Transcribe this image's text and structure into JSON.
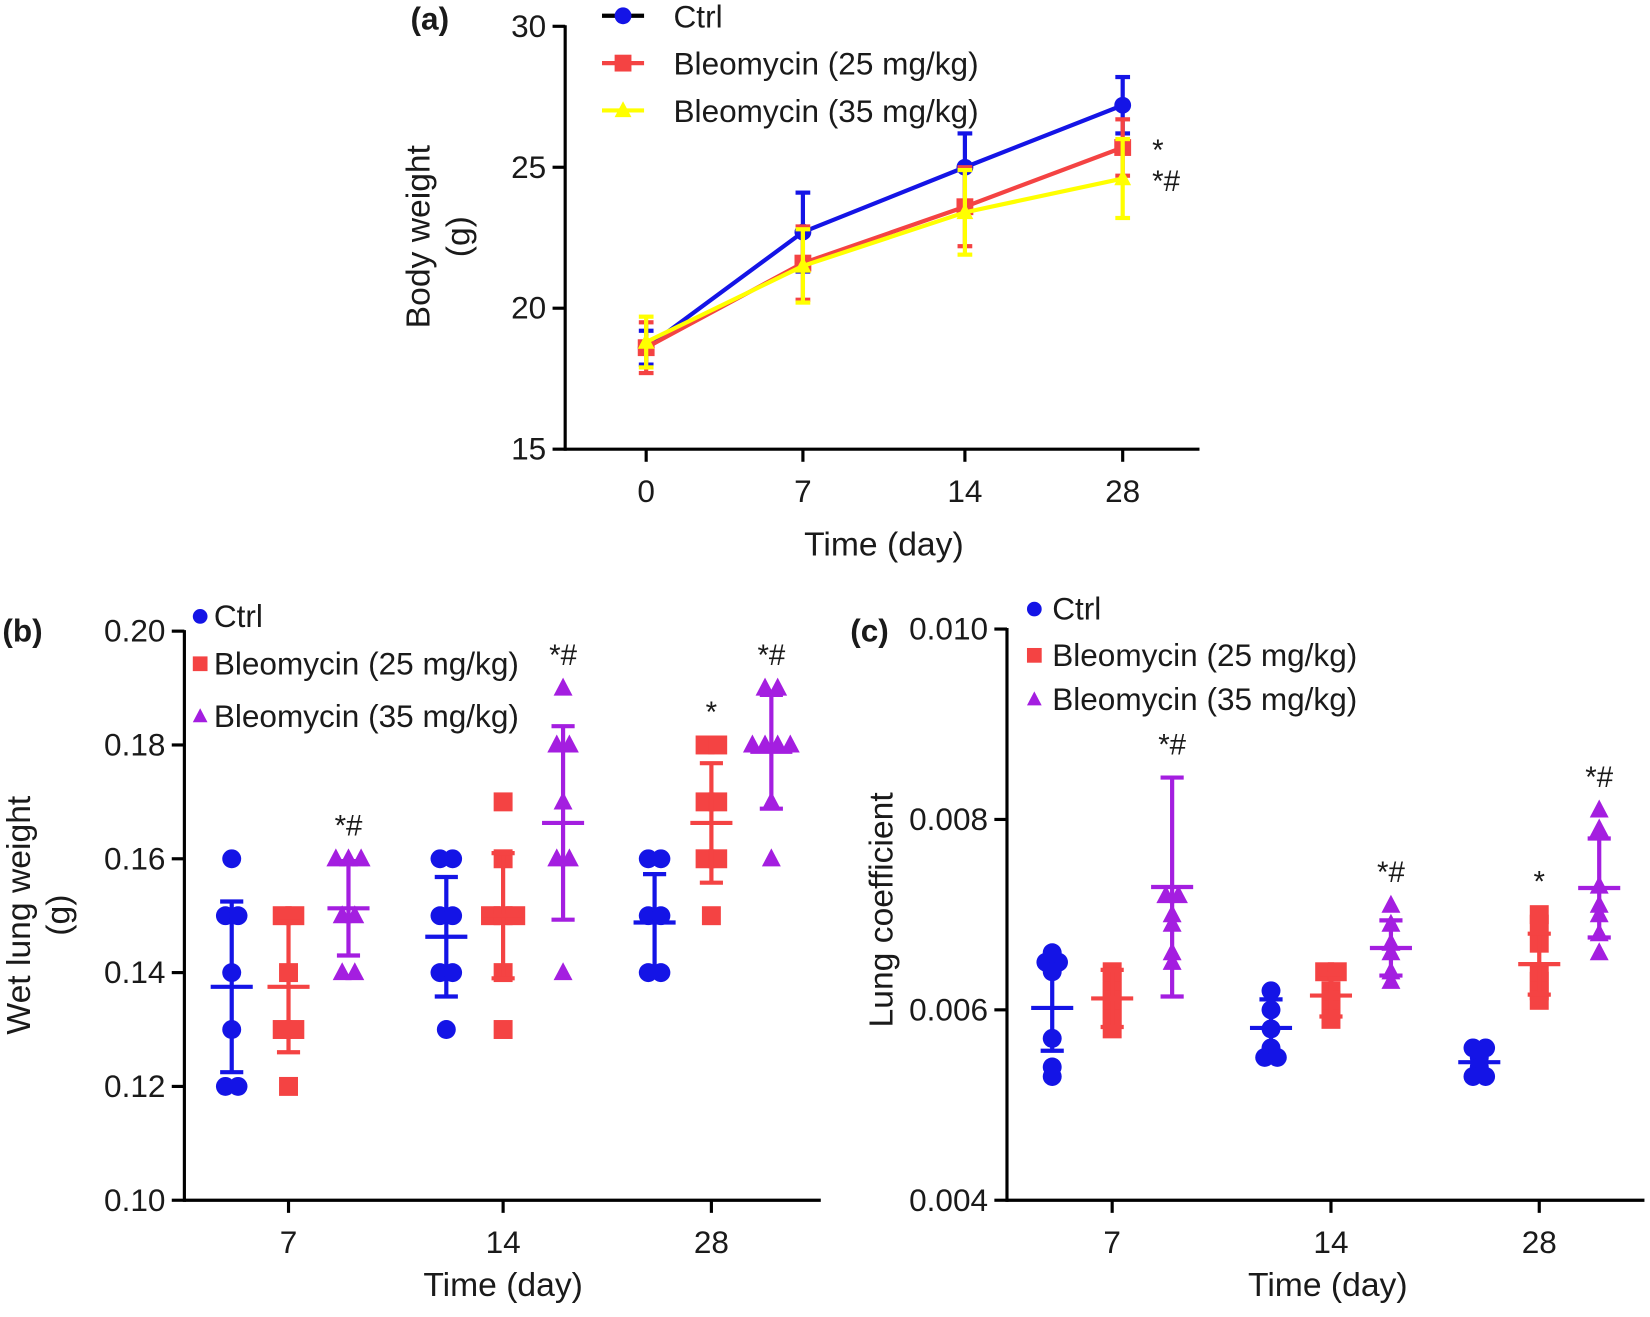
{
  "colors": {
    "ctrl": "#1414e6",
    "bleo25": "#f44343",
    "bleo35_a": "#ffff00",
    "bleo35": "#a41ee0",
    "axis": "#000000"
  },
  "chart_data": [
    {
      "panel_label": "(a)",
      "type": "line",
      "xlabel": "Time (day)",
      "ylabel": [
        "Body weight",
        "(g)"
      ],
      "categories": [
        "0",
        "7",
        "14",
        "28"
      ],
      "ylim": [
        15,
        30
      ],
      "yticks": [
        "15",
        "20",
        "25",
        "30"
      ],
      "grid": false,
      "legend": "top",
      "series": [
        {
          "name": "Ctrl",
          "key": "ctrl",
          "marker": "circle",
          "values": [
            18.6,
            22.7,
            25.0,
            27.2
          ],
          "sd": [
            0.6,
            1.4,
            1.2,
            1.0
          ],
          "annotations": [
            "",
            "",
            "",
            ""
          ]
        },
        {
          "name": "Bleomycin (25 mg/kg)",
          "key": "bleo25",
          "marker": "square",
          "values": [
            18.6,
            21.6,
            23.6,
            25.7
          ],
          "sd": [
            0.9,
            1.3,
            1.4,
            1.0
          ],
          "annotations": [
            "",
            "",
            "",
            "*"
          ]
        },
        {
          "name": "Bleomycin (35 mg/kg)",
          "key": "bleo35_a",
          "marker": "triangle",
          "values": [
            18.8,
            21.5,
            23.4,
            24.6
          ],
          "sd": [
            0.9,
            1.3,
            1.5,
            1.4
          ],
          "annotations": [
            "",
            "",
            "",
            "*#"
          ]
        }
      ]
    },
    {
      "panel_label": "(b)",
      "type": "scatter",
      "xlabel": "Time (day)",
      "ylabel": [
        "Wet lung weight",
        "(g)"
      ],
      "categories": [
        "7",
        "14",
        "28"
      ],
      "ylim": [
        0.1,
        0.2
      ],
      "yticks": [
        "0.10",
        "0.12",
        "0.14",
        "0.16",
        "0.18",
        "0.20"
      ],
      "grid": false,
      "legend": "top-left",
      "series": [
        {
          "name": "Ctrl",
          "key": "ctrl",
          "marker": "circle",
          "points": [
            [
              0.16,
              0.15,
              0.15,
              0.14,
              0.13,
              0.12,
              0.12
            ],
            [
              0.16,
              0.16,
              0.15,
              0.15,
              0.14,
              0.14,
              0.13
            ],
            [
              0.16,
              0.16,
              0.15,
              0.15,
              0.14,
              0.14
            ]
          ],
          "mean": [
            0.1375,
            0.1463,
            0.1488
          ],
          "sd": [
            0.015,
            0.0105,
            0.0085
          ],
          "annotations": [
            "",
            "",
            ""
          ]
        },
        {
          "name": "Bleomycin (25 mg/kg)",
          "key": "bleo25",
          "marker": "square",
          "points": [
            [
              0.15,
              0.15,
              0.14,
              0.13,
              0.13,
              0.12
            ],
            [
              0.17,
              0.16,
              0.15,
              0.15,
              0.15,
              0.14,
              0.13
            ],
            [
              0.18,
              0.18,
              0.17,
              0.17,
              0.16,
              0.16,
              0.15
            ]
          ],
          "mean": [
            0.1375,
            0.15,
            0.1663
          ],
          "sd": [
            0.0115,
            0.011,
            0.0105
          ],
          "annotations": [
            "",
            "",
            "*"
          ]
        },
        {
          "name": "Bleomycin (35 mg/kg)",
          "key": "bleo35",
          "marker": "triangle",
          "points": [
            [
              0.16,
              0.16,
              0.16,
              0.15,
              0.15,
              0.14,
              0.14
            ],
            [
              0.19,
              0.18,
              0.18,
              0.17,
              0.16,
              0.16,
              0.14
            ],
            [
              0.19,
              0.19,
              0.18,
              0.18,
              0.18,
              0.18,
              0.17,
              0.16
            ]
          ],
          "mean": [
            0.1513,
            0.1663,
            0.1788
          ],
          "sd": [
            0.0083,
            0.017,
            0.01
          ],
          "annotations": [
            "*#",
            "*#",
            "*#"
          ]
        }
      ]
    },
    {
      "panel_label": "(c)",
      "type": "scatter",
      "xlabel": "Time (day)",
      "ylabel": [
        "Lung coefficient"
      ],
      "categories": [
        "7",
        "14",
        "28"
      ],
      "ylim": [
        0.004,
        0.01
      ],
      "yticks": [
        "0.004",
        "0.006",
        "0.008",
        "0.010"
      ],
      "grid": false,
      "legend": "top-left",
      "series": [
        {
          "name": "Ctrl",
          "key": "ctrl",
          "marker": "circle",
          "points": [
            [
              0.0066,
              0.0065,
              0.0065,
              0.0064,
              0.0057,
              0.0054,
              0.0053
            ],
            [
              0.0062,
              0.006,
              0.0058,
              0.0056,
              0.0055,
              0.0055
            ],
            [
              0.0056,
              0.0056,
              0.0055,
              0.0054,
              0.0053,
              0.0053
            ]
          ],
          "mean": [
            0.00602,
            0.00581,
            0.00545
          ],
          "sd": [
            0.00045,
            0.0003,
            0.00012
          ],
          "annotations": [
            "",
            "",
            ""
          ]
        },
        {
          "name": "Bleomycin (25 mg/kg)",
          "key": "bleo25",
          "marker": "square",
          "points": [
            [
              0.0064,
              0.0063,
              0.0062,
              0.0061,
              0.006,
              0.0059,
              0.0058
            ],
            [
              0.0064,
              0.0064,
              0.0062,
              0.0061,
              0.006,
              0.0059
            ],
            [
              0.007,
              0.0069,
              0.0067,
              0.0064,
              0.0063,
              0.0062,
              0.0061
            ]
          ],
          "mean": [
            0.00612,
            0.00615,
            0.00648
          ],
          "sd": [
            0.0003,
            0.00022,
            0.00032
          ],
          "annotations": [
            "",
            "",
            "*"
          ]
        },
        {
          "name": "Bleomycin (35 mg/kg)",
          "key": "bleo35",
          "marker": "triangle",
          "points": [
            [
              0.0072,
              0.0072,
              0.007,
              0.0069,
              0.0066,
              0.0065
            ],
            [
              0.0071,
              0.0069,
              0.0067,
              0.0066,
              0.0064,
              0.0063
            ],
            [
              0.0081,
              0.0079,
              0.0073,
              0.0071,
              0.007,
              0.0068,
              0.0066
            ]
          ],
          "mean": [
            0.00729,
            0.00665,
            0.00728
          ],
          "sd": [
            0.00115,
            0.00029,
            0.00052
          ],
          "annotations": [
            "*#",
            "*#",
            "*#"
          ]
        }
      ]
    }
  ]
}
